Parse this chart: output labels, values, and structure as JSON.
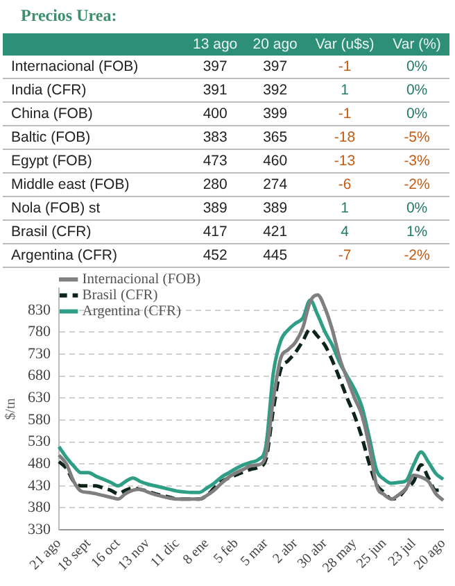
{
  "chart_data": [
    {
      "type": "other",
      "title": "Precios Urea:",
      "categories": [
        "13 ago",
        "20 ago",
        "Var (u$s)",
        "Var (%)"
      ],
      "y_categories": [
        "Internacional (FOB)",
        "India (CFR)",
        "China (FOB)",
        "Baltic (FOB)",
        "Egypt (FOB)",
        "Middle east (FOB)",
        "Nola (FOB) st",
        "Brasil (CFR)",
        "Argentina (CFR)"
      ],
      "cell_labels": [
        [
          "397",
          "397",
          "-1",
          "0%"
        ],
        [
          "391",
          "392",
          "1",
          "0%"
        ],
        [
          "400",
          "399",
          "-1",
          "0%"
        ],
        [
          "383",
          "365",
          "-18",
          "-5%"
        ],
        [
          "473",
          "460",
          "-13",
          "-3%"
        ],
        [
          "280",
          "274",
          "-6",
          "-2%"
        ],
        [
          "389",
          "389",
          "1",
          "0%"
        ],
        [
          "417",
          "421",
          "4",
          "1%"
        ],
        [
          "452",
          "445",
          "-7",
          "-2%"
        ]
      ]
    },
    {
      "type": "line",
      "ylabel": "$/tn",
      "categories": [
        "21 ago",
        null,
        null,
        null,
        "18 sept",
        null,
        null,
        null,
        "16 oct",
        null,
        null,
        null,
        "13 nov",
        null,
        null,
        null,
        "11 dic",
        null,
        null,
        null,
        "8 ene",
        null,
        null,
        null,
        "5 feb",
        null,
        null,
        null,
        "5 mar",
        null,
        null,
        null,
        "2 abr",
        null,
        null,
        null,
        "30 abr",
        null,
        null,
        null,
        "28 may",
        null,
        null,
        null,
        "25 jun",
        null,
        null,
        null,
        "23 jul",
        null,
        null,
        null,
        "20 ago"
      ],
      "ylim": [
        330,
        880
      ],
      "yticks": [
        330,
        380,
        430,
        480,
        530,
        580,
        630,
        680,
        730,
        780,
        830
      ],
      "grid": "y",
      "legend": "top left",
      "series": [
        {
          "name": "Internacional (FOB)",
          "color": "#7f7f7f",
          "line_style": "solid",
          "values": [
            500,
            480,
            440,
            418,
            415,
            412,
            408,
            404,
            400,
            412,
            420,
            422,
            416,
            410,
            406,
            402,
            400,
            400,
            400,
            400,
            408,
            420,
            436,
            450,
            460,
            468,
            476,
            478,
            500,
            627,
            720,
            740,
            757,
            790,
            850,
            865,
            835,
            785,
            720,
            674,
            630,
            591,
            520,
            430,
            410,
            400,
            410,
            425,
            454,
            450,
            440,
            412,
            397
          ]
        },
        {
          "name": "Brasil (CFR)",
          "color": "#0d2418",
          "line_style": "dashed",
          "values": [
            485,
            470,
            440,
            430,
            430,
            430,
            425,
            420,
            412,
            420,
            425,
            422,
            418,
            412,
            408,
            404,
            400,
            400,
            400,
            400,
            408,
            425,
            440,
            448,
            455,
            462,
            468,
            472,
            490,
            603,
            695,
            715,
            734,
            760,
            787,
            771,
            750,
            715,
            674,
            630,
            590,
            540,
            480,
            432,
            415,
            400,
            405,
            424,
            440,
            478,
            448,
            420,
            421
          ]
        },
        {
          "name": "Argentina (CFR)",
          "color": "#2e9e86",
          "line_style": "solid",
          "values": [
            519,
            495,
            475,
            460,
            460,
            452,
            445,
            438,
            430,
            440,
            448,
            440,
            434,
            430,
            426,
            422,
            418,
            416,
            415,
            415,
            425,
            436,
            450,
            460,
            470,
            478,
            484,
            490,
            520,
            686,
            760,
            785,
            800,
            812,
            853,
            820,
            781,
            750,
            710,
            680,
            650,
            610,
            540,
            465,
            445,
            436,
            438,
            442,
            478,
            507,
            484,
            458,
            445
          ]
        }
      ]
    }
  ]
}
